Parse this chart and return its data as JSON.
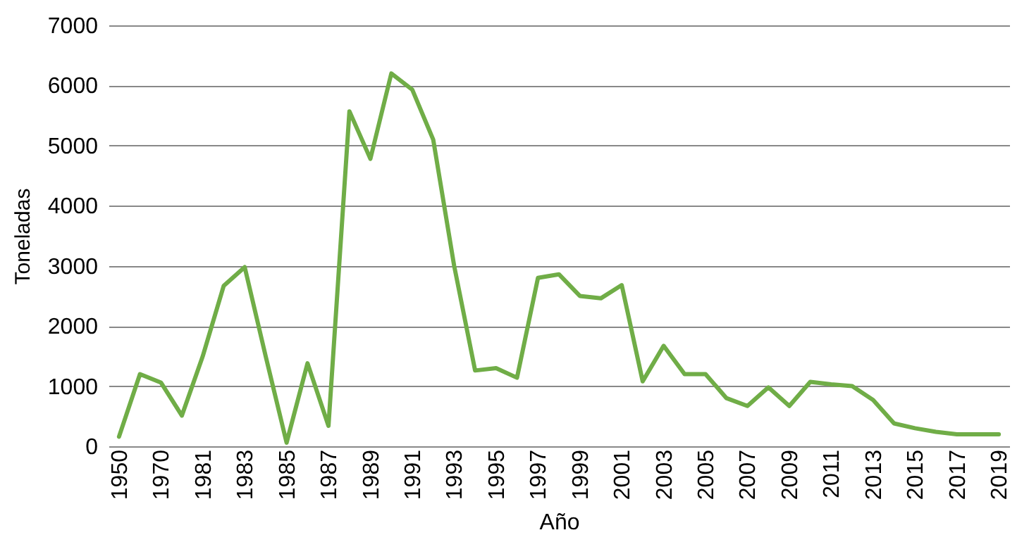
{
  "chart_data": {
    "type": "line",
    "xlabel": "Año",
    "ylabel": "Toneladas",
    "categories": [
      "1950",
      null,
      "1970",
      null,
      "1981",
      null,
      "1983",
      null,
      "1985",
      null,
      "1987",
      null,
      "1989",
      null,
      "1991",
      null,
      "1993",
      null,
      "1995",
      null,
      "1997",
      null,
      "1999",
      null,
      "2001",
      null,
      "2003",
      null,
      "2005",
      null,
      "2007",
      null,
      "2009",
      null,
      "2011",
      null,
      "2013",
      null,
      "2015",
      null,
      "2017",
      null,
      "2019"
    ],
    "series": [
      {
        "color": "#70ad47",
        "values": [
          160,
          1200,
          1060,
          510,
          1500,
          2670,
          2980,
          1500,
          60,
          1380,
          340,
          5570,
          4780,
          6200,
          5930,
          5100,
          3000,
          1260,
          1300,
          1140,
          2800,
          2860,
          2500,
          2460,
          2680,
          1080,
          1670,
          1200,
          1200,
          800,
          670,
          980,
          670,
          1070,
          1030,
          1000,
          770,
          380,
          300,
          240,
          200,
          200,
          200
        ]
      }
    ],
    "ylim": [
      0,
      7000
    ],
    "yticks": [
      0,
      1000,
      2000,
      3000,
      4000,
      5000,
      6000,
      7000
    ],
    "grid": "y",
    "marker": "none",
    "line_style": "solid",
    "legend": false
  }
}
